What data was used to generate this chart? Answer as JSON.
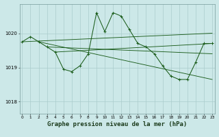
{
  "bg_color": "#cce8e8",
  "grid_color": "#aacccc",
  "line_color": "#1a5c1a",
  "xlabel": "Graphe pression niveau de la mer (hPa)",
  "xlabel_fontsize": 6.5,
  "yticks": [
    1018,
    1019,
    1020
  ],
  "xticks": [
    0,
    1,
    2,
    3,
    4,
    5,
    6,
    7,
    8,
    9,
    10,
    11,
    12,
    13,
    14,
    15,
    16,
    17,
    18,
    19,
    20,
    21,
    22,
    23
  ],
  "xlim": [
    -0.3,
    23.3
  ],
  "ylim": [
    1017.65,
    1020.85
  ],
  "series": [
    [
      0,
      1019.75
    ],
    [
      1,
      1019.9
    ],
    [
      2,
      1019.75
    ],
    [
      3,
      1019.6
    ],
    [
      4,
      1019.45
    ],
    [
      5,
      1018.95
    ],
    [
      6,
      1018.88
    ],
    [
      7,
      1019.05
    ],
    [
      8,
      1019.4
    ],
    [
      9,
      1020.6
    ],
    [
      10,
      1020.05
    ],
    [
      11,
      1020.6
    ],
    [
      12,
      1020.5
    ],
    [
      13,
      1020.1
    ],
    [
      14,
      1019.7
    ],
    [
      15,
      1019.6
    ],
    [
      16,
      1019.4
    ],
    [
      17,
      1019.05
    ],
    [
      18,
      1018.75
    ],
    [
      19,
      1018.65
    ],
    [
      20,
      1018.65
    ],
    [
      21,
      1019.15
    ],
    [
      22,
      1019.7
    ],
    [
      23,
      1019.7
    ]
  ],
  "extra_lines": [
    [
      [
        0,
        1019.75
      ],
      [
        23,
        1020.0
      ]
    ],
    [
      [
        2,
        1019.75
      ],
      [
        23,
        1018.65
      ]
    ],
    [
      [
        3,
        1019.6
      ],
      [
        23,
        1019.4
      ]
    ],
    [
      [
        4,
        1019.45
      ],
      [
        23,
        1019.7
      ]
    ]
  ]
}
